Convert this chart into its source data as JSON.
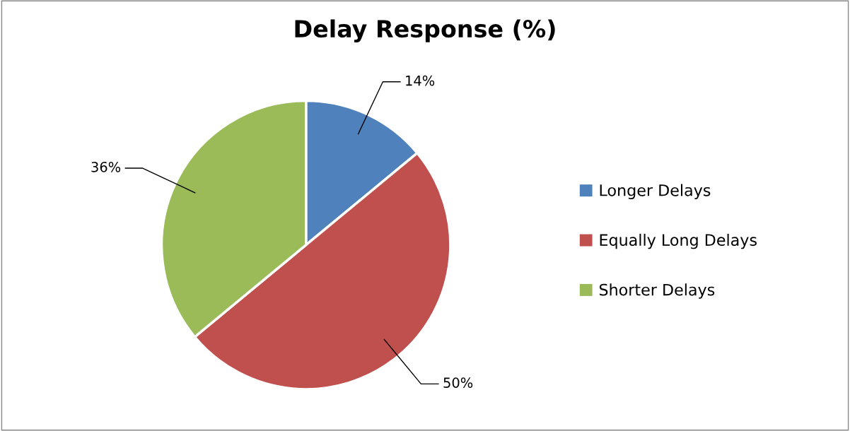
{
  "chart_data": {
    "type": "pie",
    "title": "Delay Response (%)",
    "categories": [
      "Longer Delays",
      "Equally Long Delays",
      "Shorter Delays"
    ],
    "values": [
      14,
      50,
      36
    ],
    "colors": [
      "#4f81bd",
      "#c0504d",
      "#9bbb59"
    ],
    "value_labels": [
      "14%",
      "50%",
      "36%"
    ],
    "legend": "right"
  }
}
